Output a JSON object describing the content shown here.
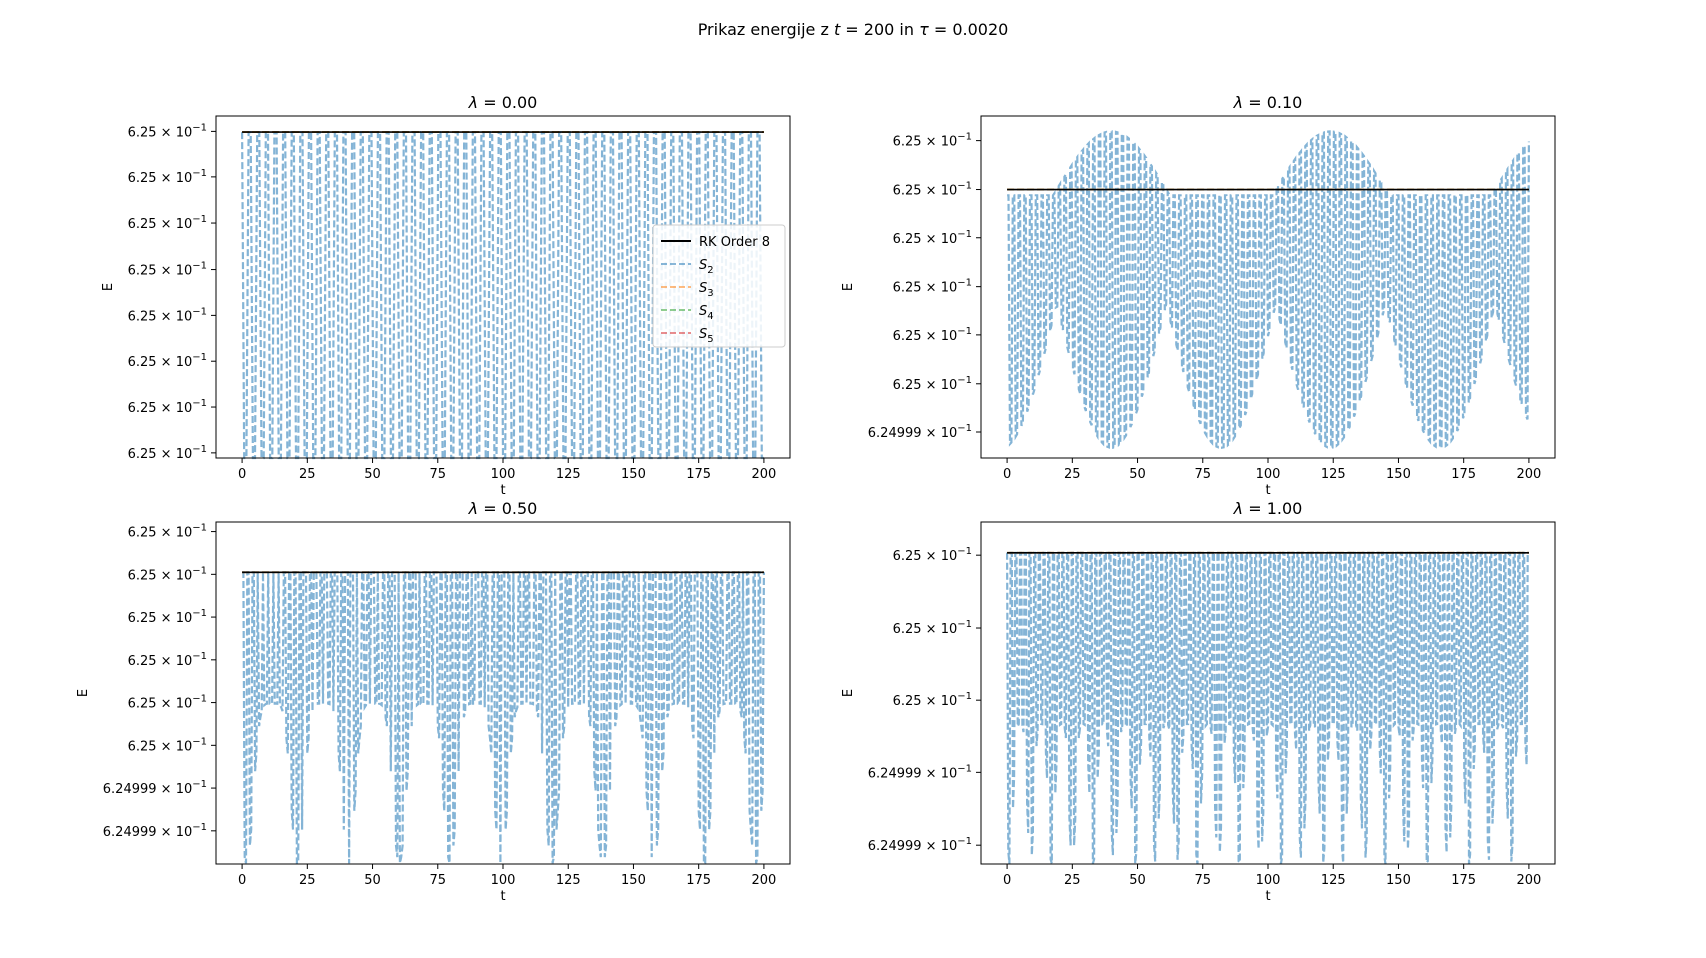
{
  "figure": {
    "suptitle": {
      "prefix": "Prikaz energije z ",
      "t_sym": "t",
      "t_eq": " = 200 in ",
      "tau_sym": "τ",
      "tau_eq": " = 0.0020"
    }
  },
  "colors": {
    "rk": "#000000",
    "s2": "#1f77b4",
    "s3": "#ff7f0e",
    "s4": "#2ca02c",
    "s5": "#d62728"
  },
  "legend": {
    "entries": [
      {
        "key": "rk",
        "label": "RK Order 8",
        "sub": ""
      },
      {
        "key": "s2",
        "label": "S",
        "sub": "2"
      },
      {
        "key": "s3",
        "label": "S",
        "sub": "3"
      },
      {
        "key": "s4",
        "label": "S",
        "sub": "4"
      },
      {
        "key": "s5",
        "label": "S",
        "sub": "5"
      }
    ]
  },
  "chart_data": [
    {
      "type": "line",
      "title_sym": "λ",
      "title_val": " = 0.00",
      "xlabel": "t",
      "ylabel": "E",
      "xlim": [
        -10,
        210
      ],
      "xticks": [
        0,
        25,
        50,
        75,
        100,
        125,
        150,
        175,
        200
      ],
      "ylim": [
        0,
        1
      ],
      "yticks": [
        {
          "v": 0.955,
          "mant": "6.25"
        },
        {
          "v": 0.822,
          "mant": "6.25"
        },
        {
          "v": 0.687,
          "mant": "6.25"
        },
        {
          "v": 0.551,
          "mant": "6.25"
        },
        {
          "v": 0.417,
          "mant": "6.25"
        },
        {
          "v": 0.283,
          "mant": "6.25"
        },
        {
          "v": 0.149,
          "mant": "6.25"
        },
        {
          "v": 0.015,
          "mant": "6.25"
        }
      ],
      "tick_exp": "−1",
      "rk_level": 0.953,
      "s2": {
        "top": 0.953,
        "bottom": 0.0,
        "period": 3.3,
        "env": "constant"
      },
      "legend": true
    },
    {
      "type": "line",
      "title_sym": "λ",
      "title_val": " = 0.10",
      "xlabel": "t",
      "ylabel": "E",
      "xlim": [
        -10,
        210
      ],
      "xticks": [
        0,
        25,
        50,
        75,
        100,
        125,
        150,
        175,
        200
      ],
      "ylim": [
        0,
        1
      ],
      "yticks": [
        {
          "v": 0.928,
          "mant": "6.25"
        },
        {
          "v": 0.785,
          "mant": "6.25"
        },
        {
          "v": 0.644,
          "mant": "6.25"
        },
        {
          "v": 0.501,
          "mant": "6.25"
        },
        {
          "v": 0.36,
          "mant": "6.25"
        },
        {
          "v": 0.217,
          "mant": "6.25"
        },
        {
          "v": 0.076,
          "mant": "6.24999"
        }
      ],
      "tick_exp": "−1",
      "rk_level": 0.785,
      "s2": {
        "top": 0.785,
        "bottom": 0.0,
        "period": 2.2,
        "env": "beat",
        "beat_period": 84,
        "beat_phase": 40
      },
      "legend": false
    },
    {
      "type": "line",
      "title_sym": "λ",
      "title_val": " = 0.50",
      "xlabel": "t",
      "ylabel": "E",
      "xlim": [
        -10,
        210
      ],
      "xticks": [
        0,
        25,
        50,
        75,
        100,
        125,
        150,
        175,
        200
      ],
      "ylim": [
        0,
        1
      ],
      "yticks": [
        {
          "v": 0.972,
          "mant": "6.25"
        },
        {
          "v": 0.847,
          "mant": "6.25"
        },
        {
          "v": 0.722,
          "mant": "6.25"
        },
        {
          "v": 0.597,
          "mant": "6.25"
        },
        {
          "v": 0.472,
          "mant": "6.25"
        },
        {
          "v": 0.347,
          "mant": "6.25"
        },
        {
          "v": 0.222,
          "mant": "6.24999"
        },
        {
          "v": 0.097,
          "mant": "6.24999"
        }
      ],
      "tick_exp": "−1",
      "rk_level": 0.853,
      "s2": {
        "top": 0.853,
        "bottom": 0.0,
        "period": 2.0,
        "env": "pulses",
        "pulse_period": 19.5
      },
      "legend": false
    },
    {
      "type": "line",
      "title_sym": "λ",
      "title_val": " = 1.00",
      "xlabel": "t",
      "ylabel": "E",
      "xlim": [
        -10,
        210
      ],
      "xticks": [
        0,
        25,
        50,
        75,
        100,
        125,
        150,
        175,
        200
      ],
      "ylim": [
        0,
        1
      ],
      "yticks": [
        {
          "v": 0.903,
          "mant": "6.25"
        },
        {
          "v": 0.69,
          "mant": "6.25"
        },
        {
          "v": 0.479,
          "mant": "6.25"
        },
        {
          "v": 0.268,
          "mant": "6.24999"
        },
        {
          "v": 0.055,
          "mant": "6.24999"
        }
      ],
      "tick_exp": "−1",
      "rk_level": 0.91,
      "s2": {
        "top": 0.91,
        "bottom": 0.0,
        "period": 1.8,
        "env": "dense",
        "pulse_period": 8.0
      },
      "legend": false
    }
  ]
}
